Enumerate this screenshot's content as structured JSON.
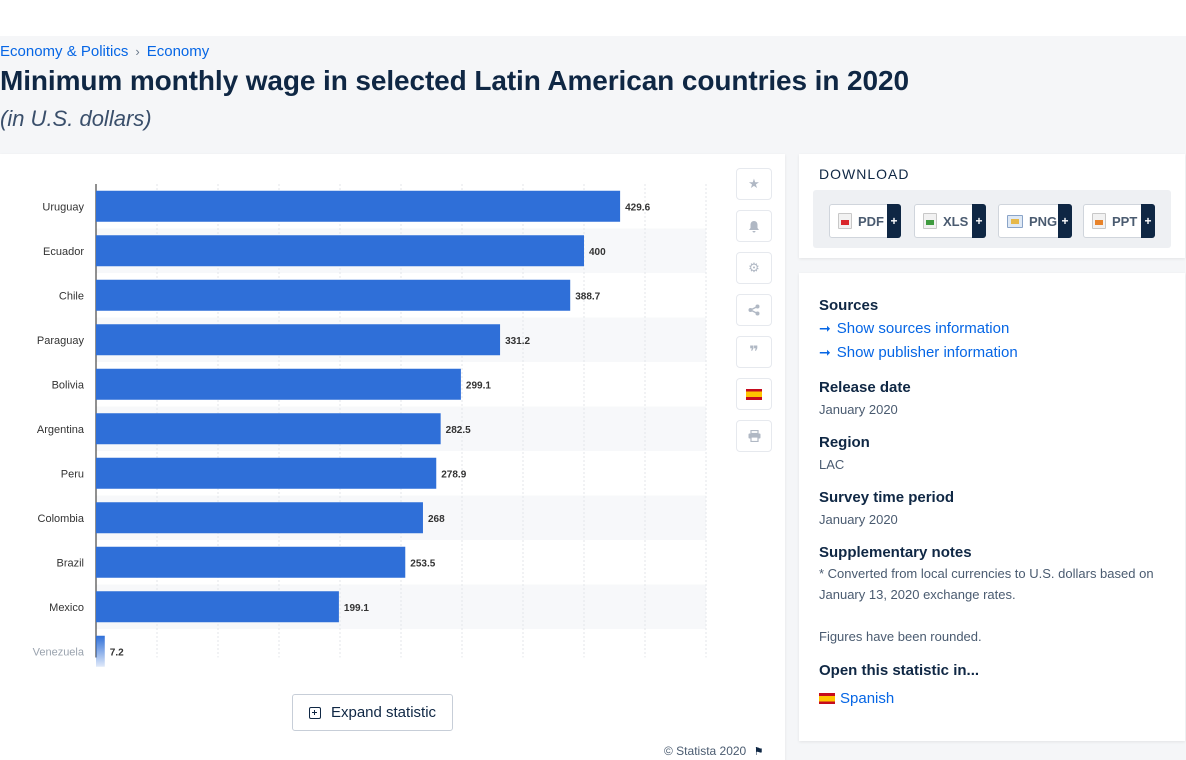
{
  "breadcrumb": {
    "item1": "Economy & Politics",
    "separator": "›",
    "item2": "Economy"
  },
  "title": "Minimum monthly wage in selected Latin American countries in 2020",
  "subtitle": "(in U.S. dollars)",
  "chart_data": {
    "type": "bar",
    "orientation": "horizontal",
    "categories": [
      "Uruguay",
      "Ecuador",
      "Chile",
      "Paraguay",
      "Bolivia",
      "Argentina",
      "Peru",
      "Colombia",
      "Brazil",
      "Mexico",
      "Venezuela"
    ],
    "values": [
      429.6,
      400,
      388.7,
      331.2,
      299.1,
      282.5,
      278.9,
      268,
      253.5,
      199.1,
      7.2
    ],
    "value_labels": [
      "429.6",
      "400",
      "388.7",
      "331.2",
      "299.1",
      "282.5",
      "278.9",
      "268",
      "253.5",
      "199.1",
      "7.2"
    ],
    "xlim": [
      0,
      500
    ],
    "grid": true,
    "bar_color": "#2f6fd8",
    "legend": "none"
  },
  "tools": {
    "star_icon": "star-icon",
    "bell_icon": "bell-icon",
    "gear_icon": "gear-icon",
    "share_icon": "share-icon",
    "quote_icon": "quote-icon",
    "flag_icon": "spanish-flag-icon",
    "print_icon": "print-icon"
  },
  "expand_label": "Expand statistic",
  "copyright": "© Statista 2020",
  "download": {
    "heading": "DOWNLOAD",
    "buttons": [
      {
        "label": "PDF",
        "plus": "+"
      },
      {
        "label": "XLS",
        "plus": "+"
      },
      {
        "label": "PNG",
        "plus": "+"
      },
      {
        "label": "PPT",
        "plus": "+"
      }
    ]
  },
  "info": {
    "sources_label": "Sources",
    "show_sources": "Show sources information",
    "show_publisher": "Show publisher information",
    "release_date_label": "Release date",
    "release_date": "January 2020",
    "region_label": "Region",
    "region": "LAC",
    "survey_period_label": "Survey time period",
    "survey_period": "January 2020",
    "supplementary_label": "Supplementary notes",
    "note1": "* Converted from local currencies to U.S. dollars based on January 13, 2020 exchange rates.",
    "note2": "Figures have been rounded.",
    "open_in_label": "Open this statistic in...",
    "spanish": "Spanish"
  },
  "colors": {
    "accent": "#0666e5",
    "bar": "#2f6fd8",
    "navy": "#0f2744"
  }
}
